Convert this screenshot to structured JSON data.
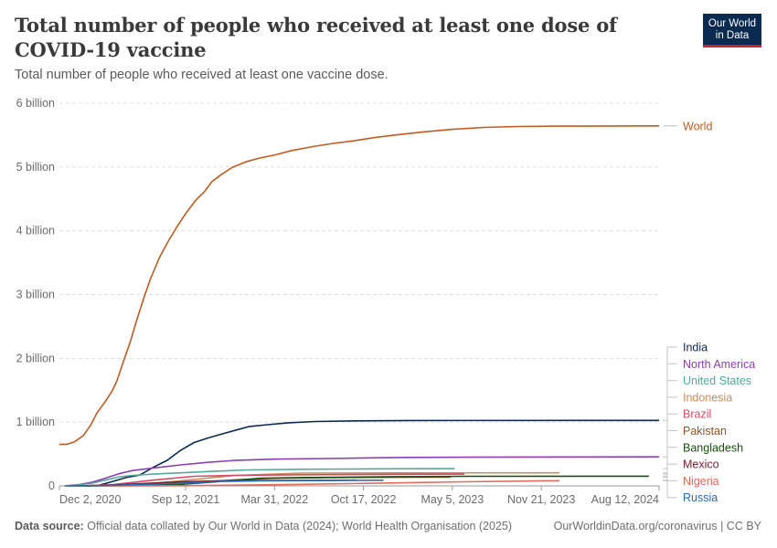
{
  "header": {
    "title": "Total number of people who received at least one dose of COVID-19 vaccine",
    "subtitle": "Total number of people who received at least one vaccine dose.",
    "logo_line1": "Our World",
    "logo_line2": "in Data"
  },
  "footer": {
    "source_label": "Data source:",
    "source_text": "Official data collated by Our World in Data (2024); World Health Organisation (2025)",
    "right_text": "OurWorldinData.org/coronavirus | CC BY"
  },
  "chart_data": {
    "type": "line",
    "title": "Total number of people who received at least one dose of COVID-19 vaccine",
    "subtitle": "Total number of people who received at least one vaccine dose.",
    "xlabel": "",
    "ylabel": "",
    "xlim": [
      "2020-12-02",
      "2024-08-12"
    ],
    "ylim": [
      0,
      6000000000
    ],
    "y_ticks": [
      0,
      1000000000,
      2000000000,
      3000000000,
      4000000000,
      5000000000,
      6000000000
    ],
    "y_tick_labels": [
      "0",
      "1 billion",
      "2 billion",
      "3 billion",
      "4 billion",
      "5 billion",
      "6 billion"
    ],
    "x_ticks": [
      "2020-12-02",
      "2021-09-12",
      "2022-03-31",
      "2022-10-17",
      "2023-05-05",
      "2023-11-21",
      "2024-08-12"
    ],
    "x_tick_labels": [
      "Dec 2, 2020",
      "Sep 12, 2021",
      "Mar 31, 2022",
      "Oct 17, 2022",
      "May 5, 2023",
      "Nov 21, 2023",
      "Aug 12, 2024"
    ],
    "grid": "horizontal dashed",
    "legend_placement": "right",
    "series": [
      {
        "name": "World",
        "color": "#c15b21",
        "points": [
          [
            "2020-12-02",
            650000000
          ],
          [
            "2020-12-20",
            655000000
          ],
          [
            "2021-01-05",
            690000000
          ],
          [
            "2021-01-25",
            790000000
          ],
          [
            "2021-02-10",
            950000000
          ],
          [
            "2021-02-25",
            1150000000
          ],
          [
            "2021-03-15",
            1320000000
          ],
          [
            "2021-03-30",
            1480000000
          ],
          [
            "2021-04-10",
            1640000000
          ],
          [
            "2021-04-25",
            1950000000
          ],
          [
            "2021-05-10",
            2250000000
          ],
          [
            "2021-05-25",
            2600000000
          ],
          [
            "2021-06-10",
            2950000000
          ],
          [
            "2021-06-25",
            3250000000
          ],
          [
            "2021-07-15",
            3580000000
          ],
          [
            "2021-08-05",
            3850000000
          ],
          [
            "2021-08-25",
            4080000000
          ],
          [
            "2021-09-15",
            4300000000
          ],
          [
            "2021-10-05",
            4480000000
          ],
          [
            "2021-10-25",
            4620000000
          ],
          [
            "2021-11-10",
            4770000000
          ],
          [
            "2021-12-01",
            4880000000
          ],
          [
            "2021-12-25",
            4990000000
          ],
          [
            "2022-01-25",
            5080000000
          ],
          [
            "2022-02-25",
            5140000000
          ],
          [
            "2022-04-01",
            5190000000
          ],
          [
            "2022-05-10",
            5260000000
          ],
          [
            "2022-06-25",
            5320000000
          ],
          [
            "2022-08-10",
            5370000000
          ],
          [
            "2022-09-25",
            5410000000
          ],
          [
            "2022-11-10",
            5460000000
          ],
          [
            "2022-12-25",
            5500000000
          ],
          [
            "2023-03-01",
            5550000000
          ],
          [
            "2023-05-05",
            5590000000
          ],
          [
            "2023-07-15",
            5620000000
          ],
          [
            "2023-10-01",
            5635000000
          ],
          [
            "2024-01-01",
            5640000000
          ],
          [
            "2024-08-12",
            5645000000
          ]
        ]
      },
      {
        "name": "India",
        "color": "#0b2a50",
        "points": [
          [
            "2021-01-16",
            0
          ],
          [
            "2021-03-01",
            10000000
          ],
          [
            "2021-04-01",
            70000000
          ],
          [
            "2021-05-01",
            130000000
          ],
          [
            "2021-06-01",
            170000000
          ],
          [
            "2021-07-01",
            290000000
          ],
          [
            "2021-08-01",
            400000000
          ],
          [
            "2021-09-01",
            560000000
          ],
          [
            "2021-10-01",
            680000000
          ],
          [
            "2021-11-01",
            750000000
          ],
          [
            "2021-12-01",
            810000000
          ],
          [
            "2022-01-01",
            870000000
          ],
          [
            "2022-02-01",
            930000000
          ],
          [
            "2022-03-15",
            960000000
          ],
          [
            "2022-05-01",
            990000000
          ],
          [
            "2022-07-01",
            1010000000
          ],
          [
            "2022-10-01",
            1020000000
          ],
          [
            "2023-02-01",
            1025000000
          ],
          [
            "2024-08-12",
            1027000000
          ]
        ]
      },
      {
        "name": "North America",
        "color": "#8c3fb3",
        "points": [
          [
            "2020-12-14",
            0
          ],
          [
            "2021-01-15",
            20000000
          ],
          [
            "2021-02-15",
            60000000
          ],
          [
            "2021-03-15",
            120000000
          ],
          [
            "2021-04-15",
            190000000
          ],
          [
            "2021-05-15",
            240000000
          ],
          [
            "2021-07-01",
            280000000
          ],
          [
            "2021-09-01",
            330000000
          ],
          [
            "2021-11-01",
            370000000
          ],
          [
            "2022-01-01",
            400000000
          ],
          [
            "2022-04-01",
            420000000
          ],
          [
            "2022-08-01",
            430000000
          ],
          [
            "2023-01-01",
            445000000
          ],
          [
            "2023-06-01",
            450000000
          ],
          [
            "2024-08-12",
            455000000
          ]
        ]
      },
      {
        "name": "United States",
        "color": "#55a89c",
        "points": [
          [
            "2020-12-14",
            0
          ],
          [
            "2021-01-15",
            15000000
          ],
          [
            "2021-02-15",
            45000000
          ],
          [
            "2021-03-15",
            90000000
          ],
          [
            "2021-04-15",
            140000000
          ],
          [
            "2021-05-15",
            165000000
          ],
          [
            "2021-07-01",
            185000000
          ],
          [
            "2021-09-01",
            205000000
          ],
          [
            "2021-11-01",
            225000000
          ],
          [
            "2022-02-01",
            250000000
          ],
          [
            "2022-06-01",
            260000000
          ],
          [
            "2022-12-01",
            268000000
          ],
          [
            "2023-05-10",
            270000000
          ]
        ]
      },
      {
        "name": "Indonesia",
        "color": "#c88c5b",
        "points": [
          [
            "2021-01-13",
            0
          ],
          [
            "2021-04-01",
            10000000
          ],
          [
            "2021-07-01",
            40000000
          ],
          [
            "2021-10-01",
            100000000
          ],
          [
            "2022-01-01",
            165000000
          ],
          [
            "2022-06-01",
            200000000
          ],
          [
            "2023-01-01",
            204000000
          ],
          [
            "2024-01-01",
            205000000
          ]
        ]
      },
      {
        "name": "Brazil",
        "color": "#d24b64",
        "points": [
          [
            "2021-01-17",
            0
          ],
          [
            "2021-04-01",
            20000000
          ],
          [
            "2021-07-01",
            90000000
          ],
          [
            "2021-10-01",
            150000000
          ],
          [
            "2022-01-01",
            165000000
          ],
          [
            "2022-06-01",
            175000000
          ],
          [
            "2023-01-01",
            182000000
          ],
          [
            "2023-06-01",
            185000000
          ]
        ]
      },
      {
        "name": "Pakistan",
        "color": "#9a5129",
        "points": [
          [
            "2021-02-02",
            0
          ],
          [
            "2021-07-01",
            20000000
          ],
          [
            "2021-10-01",
            55000000
          ],
          [
            "2022-01-01",
            95000000
          ],
          [
            "2022-04-01",
            120000000
          ],
          [
            "2022-08-01",
            130000000
          ],
          [
            "2023-01-01",
            135000000
          ],
          [
            "2023-05-01",
            137000000
          ]
        ]
      },
      {
        "name": "Bangladesh",
        "color": "#1a4d0f",
        "points": [
          [
            "2021-01-27",
            0
          ],
          [
            "2021-06-01",
            5000000
          ],
          [
            "2021-09-01",
            25000000
          ],
          [
            "2021-12-01",
            70000000
          ],
          [
            "2022-03-01",
            120000000
          ],
          [
            "2022-06-01",
            130000000
          ],
          [
            "2023-01-01",
            145000000
          ],
          [
            "2023-06-01",
            150000000
          ],
          [
            "2024-07-20",
            152000000
          ]
        ]
      },
      {
        "name": "Mexico",
        "color": "#7a1f28",
        "points": [
          [
            "2020-12-24",
            0
          ],
          [
            "2021-03-01",
            5000000
          ],
          [
            "2021-06-01",
            35000000
          ],
          [
            "2021-09-01",
            65000000
          ],
          [
            "2021-12-01",
            80000000
          ],
          [
            "2022-03-01",
            85000000
          ],
          [
            "2022-08-01",
            88000000
          ],
          [
            "2022-10-01",
            90000000
          ]
        ]
      },
      {
        "name": "Nigeria",
        "color": "#e26b5a",
        "points": [
          [
            "2021-03-05",
            0
          ],
          [
            "2021-09-01",
            3000000
          ],
          [
            "2022-01-01",
            12000000
          ],
          [
            "2022-06-01",
            25000000
          ],
          [
            "2022-12-01",
            45000000
          ],
          [
            "2023-06-01",
            65000000
          ],
          [
            "2023-12-01",
            80000000
          ],
          [
            "2024-01-01",
            82000000
          ]
        ]
      },
      {
        "name": "Russia",
        "color": "#286bbb",
        "points": [
          [
            "2020-12-15",
            0
          ],
          [
            "2021-03-01",
            5000000
          ],
          [
            "2021-06-01",
            20000000
          ],
          [
            "2021-09-01",
            40000000
          ],
          [
            "2021-12-01",
            70000000
          ],
          [
            "2022-03-01",
            80000000
          ],
          [
            "2022-08-01",
            85000000
          ],
          [
            "2022-12-01",
            89000000
          ]
        ]
      }
    ]
  }
}
